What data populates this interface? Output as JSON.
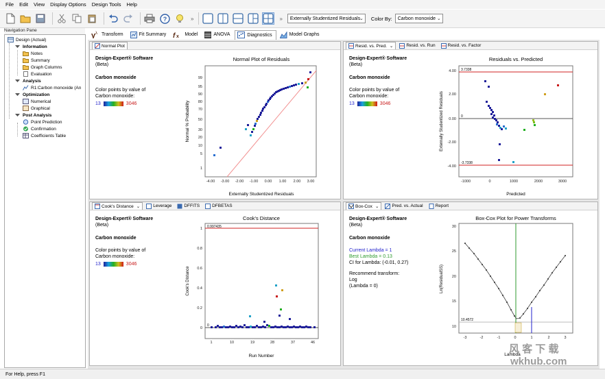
{
  "menu": [
    "File",
    "Edit",
    "View",
    "Display Options",
    "Design Tools",
    "Help"
  ],
  "toolbar": {
    "residual_type": "Externally Studentized Residuals",
    "color_by_label": "Color By:",
    "color_by_value": "Carbon monoxide"
  },
  "nav": {
    "title": "Navigation Pane",
    "items": [
      "Design (Actual)",
      "Information",
      "Notes",
      "Summary",
      "Graph Columns",
      "Evaluation",
      "Analysis",
      "R1:Carbon monoxide (An",
      "Optimization",
      "Numerical",
      "Graphical",
      "Post Analysis",
      "Point Prediction",
      "Confirmation",
      "Coefficients Table"
    ]
  },
  "top_tabs": [
    "Transform",
    "Fit Summary",
    "Model",
    "ANOVA",
    "Diagnostics",
    "Model Graphs"
  ],
  "common": {
    "software": "Design-Expert® Software",
    "beta": "(Beta)",
    "response": "Carbon monoxide",
    "color_points_1": "Color points by value of",
    "color_points_2": "Carbon monoxide:",
    "low": "13",
    "high": "3046"
  },
  "panel_normal": {
    "tabs": [
      "Normal Plot"
    ],
    "title": "Normal Plot of Residuals",
    "xlabel": "Externally Studentized Residuals",
    "ylabel": "Normal % Probability",
    "xticks": [
      "-4.00",
      "-3.00",
      "-2.00",
      "-1.00",
      "0.00",
      "1.00",
      "2.00",
      "3.00"
    ],
    "yticks": [
      "99",
      "95",
      "90",
      "80",
      "70",
      "50",
      "30",
      "20",
      "10",
      "5",
      "1"
    ]
  },
  "panel_resid": {
    "tabs": [
      "Resid. vs. Pred.",
      "Resid. vs. Run",
      "Resid. vs. Factor"
    ],
    "title": "Residuals vs. Predicted",
    "xlabel": "Predicted",
    "ylabel": "Externally Studentized Residuals",
    "xticks": [
      "-1000",
      "0",
      "1000",
      "2000",
      "3000"
    ],
    "yticks": [
      "4.00",
      "2.00",
      "0.00",
      "-2.00",
      "-4.00"
    ],
    "upper_label": "3.7338",
    "lower_label": "-3.7338",
    "zero_label": "0"
  },
  "panel_cooks": {
    "tabs": [
      "Cook's Distance",
      "Leverage",
      "DFFITS",
      "DFBETAS"
    ],
    "title": "Cook's Distance",
    "xlabel": "Run Number",
    "ylabel": "Cook's Distance",
    "xticks": [
      "1",
      "10",
      "19",
      "28",
      "37",
      "46"
    ],
    "yticks": [
      "1",
      "0.8",
      "0.6",
      "0.4",
      "0.2",
      "0"
    ],
    "limit_label": "0.997435",
    "zero_label": "0"
  },
  "panel_boxcox": {
    "tabs": [
      "Box-Cox",
      "Pred. vs. Actual",
      "Report"
    ],
    "title": "Box-Cox Plot for Power Transforms",
    "xlabel": "Lambda",
    "ylabel": "Ln(ResidualSS)",
    "xticks": [
      "-3",
      "-2",
      "-1",
      "0",
      "1",
      "2",
      "3"
    ],
    "yticks": [
      "30",
      "25",
      "20",
      "15",
      "10"
    ],
    "min_label": "10.4572",
    "current_lambda": "Current Lambda = 1",
    "best_lambda": "Best Lambda = 0.13",
    "ci": "CI for Lambda: (-0.01, 0.27)",
    "recommend": "Recommend transform:",
    "transform": "Log",
    "lambda_zero": "(Lambda = 0)"
  },
  "status": "For Help, press F1",
  "watermark": {
    "line1": "风 客 下 载",
    "line2": "wkhub.com"
  },
  "colors": {
    "accent": "#1f1f9a",
    "limit_line": "#d02020",
    "fit_line": "#f08080",
    "current_lambda": "#2e9a2e",
    "best_lambda": "#2222cc"
  }
}
